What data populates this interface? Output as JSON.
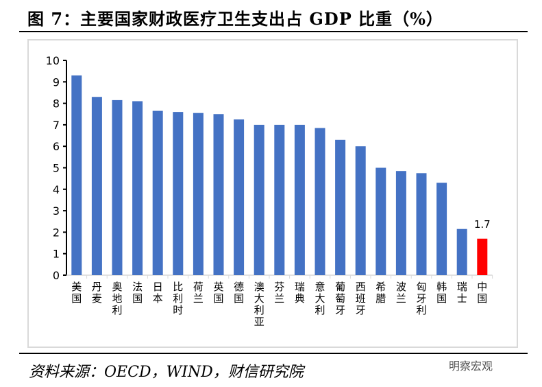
{
  "title": "图 7：主要国家财政医疗卫生支出占 GDP 比重（%）",
  "source": "资料来源：OECD，WIND，财信研究院",
  "watermark": "明察宏观",
  "chart_data": {
    "type": "bar",
    "categories": [
      "美国",
      "丹麦",
      "奥地利",
      "法国",
      "日本",
      "比利时",
      "荷兰",
      "英国",
      "德国",
      "澳大利亚",
      "芬兰",
      "瑞典",
      "意大利",
      "葡萄牙",
      "西班牙",
      "希腊",
      "波兰",
      "匈牙利",
      "韩国",
      "瑞士",
      "中国"
    ],
    "values": [
      9.3,
      8.3,
      8.15,
      8.1,
      7.65,
      7.6,
      7.55,
      7.5,
      7.25,
      7.0,
      7.0,
      7.0,
      6.85,
      6.3,
      6.0,
      5.0,
      4.85,
      4.75,
      4.3,
      2.15,
      1.7
    ],
    "ylim": [
      0,
      10
    ],
    "yticks": [
      0,
      1,
      2,
      3,
      4,
      5,
      6,
      7,
      8,
      9,
      10
    ],
    "grid": false,
    "colors": {
      "default": "#4472c4",
      "highlight": "#ff0000"
    },
    "highlight": "中国",
    "data_labels": [
      {
        "category": "中国",
        "text": "1.7"
      }
    ]
  }
}
